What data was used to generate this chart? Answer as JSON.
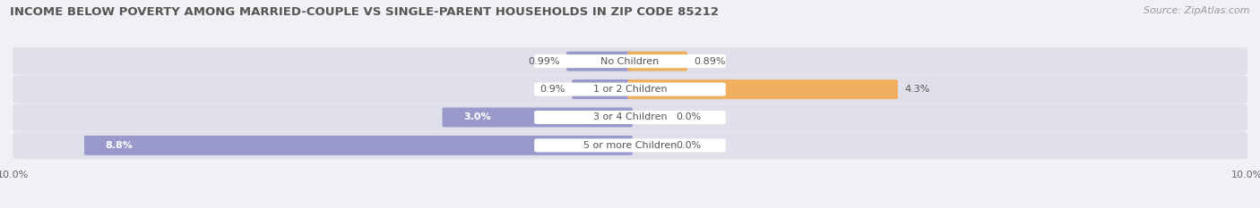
{
  "title": "INCOME BELOW POVERTY AMONG MARRIED-COUPLE VS SINGLE-PARENT HOUSEHOLDS IN ZIP CODE 85212",
  "source": "Source: ZipAtlas.com",
  "categories": [
    "No Children",
    "1 or 2 Children",
    "3 or 4 Children",
    "5 or more Children"
  ],
  "married_values": [
    0.99,
    0.9,
    3.0,
    8.8
  ],
  "single_values": [
    0.89,
    4.3,
    0.0,
    0.0
  ],
  "married_color": "#9999cc",
  "single_color": "#f0b060",
  "axis_max": 10.0,
  "bar_bg_color": "#e0e0ea",
  "bg_color": "#f0f0f5",
  "title_fontsize": 9.5,
  "source_fontsize": 8,
  "label_fontsize": 8,
  "category_fontsize": 8,
  "axis_label_fontsize": 8
}
